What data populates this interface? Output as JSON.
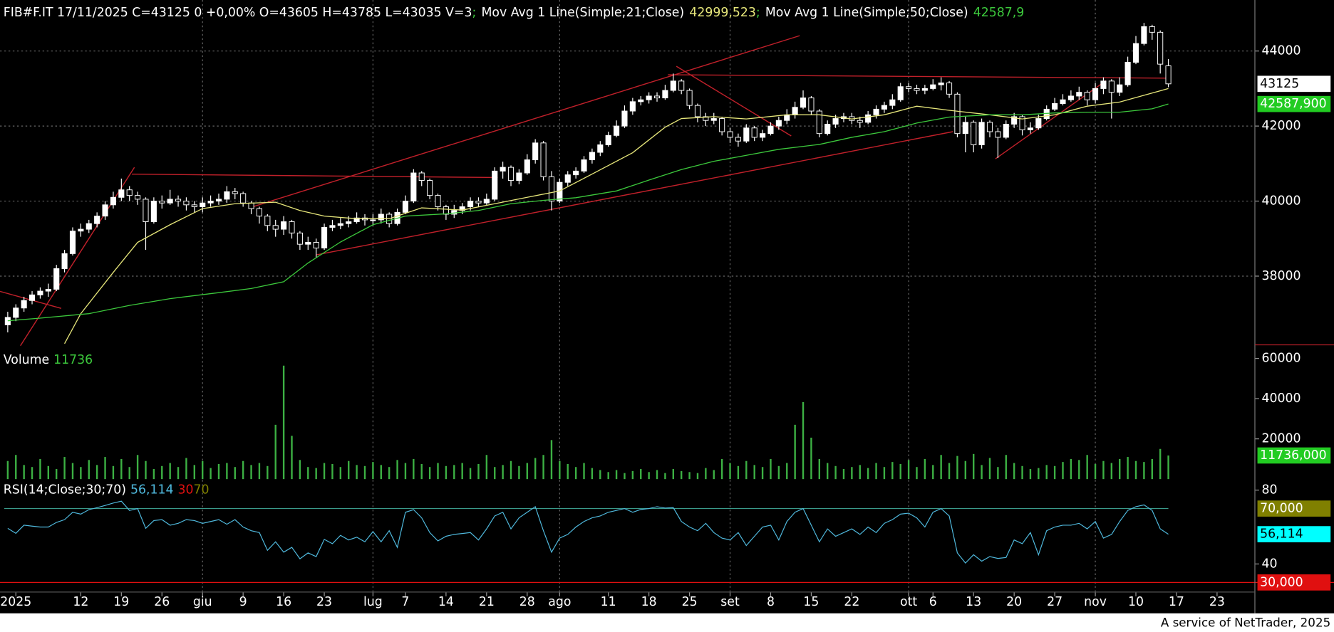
{
  "header": {
    "title": "FIB#F.IT 17/11/2025 C=43125 0 +0,00% O=43605 H=43785 L=43035 V=3",
    "separator": ";"
  },
  "footer": "A service of NetTrader, 2025",
  "chart_data": [
    {
      "type": "candlestick",
      "open": [
        36700,
        36900,
        37150,
        37350,
        37500,
        37600,
        37650,
        38200,
        38600,
        39200,
        39250,
        39400,
        39600,
        39900,
        40100,
        40300,
        40150,
        40050,
        39450,
        40000,
        39950,
        40050,
        40000,
        39900,
        39850,
        39950,
        40000,
        40050,
        40250,
        40200,
        39950,
        39800,
        39600,
        39350,
        39250,
        39450,
        39150,
        38850,
        38900,
        38750,
        39300,
        39350,
        39400,
        39450,
        39550,
        39500,
        39500,
        39650,
        39400,
        39700,
        40000,
        40750,
        40550,
        40150,
        39850,
        39650,
        39750,
        39850,
        40000,
        39950,
        40050,
        40800,
        40900,
        40550,
        40750,
        41100,
        41550,
        40650,
        40000,
        40500,
        40700,
        40800,
        41100,
        41300,
        41500,
        41750,
        42000,
        42400,
        42650,
        42700,
        42800,
        42750,
        42950,
        43200,
        42950,
        42550,
        42250,
        42150,
        42200,
        41850,
        41700,
        41600,
        41950,
        41700,
        41800,
        42000,
        42150,
        42300,
        42500,
        42750,
        42400,
        41800,
        42050,
        42200,
        42250,
        42150,
        42100,
        42300,
        42450,
        42550,
        42700,
        43050,
        43000,
        42950,
        43000,
        43100,
        43150,
        42850,
        41800,
        42100,
        41500,
        42100,
        41850,
        41700,
        42050,
        42250,
        41900,
        41950,
        42200,
        42450,
        42600,
        42700,
        42800,
        42900,
        42700,
        43000,
        43200,
        42900,
        43100,
        43700,
        44200,
        44650,
        44500,
        43605
      ],
      "high": [
        37050,
        37250,
        37450,
        37600,
        37700,
        37800,
        38300,
        38700,
        39300,
        39400,
        39500,
        39700,
        40000,
        40250,
        40600,
        40400,
        40250,
        40100,
        40100,
        40150,
        40300,
        40150,
        40100,
        40000,
        40100,
        40150,
        40200,
        40400,
        40350,
        40250,
        40000,
        39850,
        39650,
        39500,
        39600,
        39500,
        39200,
        39050,
        39000,
        39400,
        39500,
        39550,
        39600,
        39700,
        39650,
        39650,
        39800,
        39700,
        39800,
        40150,
        40850,
        40800,
        40600,
        40200,
        39900,
        39900,
        39950,
        40100,
        40100,
        40200,
        40900,
        41050,
        40950,
        40850,
        41250,
        41650,
        41600,
        40800,
        40600,
        40800,
        40900,
        41200,
        41400,
        41600,
        41850,
        42150,
        42550,
        42750,
        42800,
        42900,
        42900,
        43100,
        43400,
        43250,
        43000,
        42600,
        42350,
        42350,
        42250,
        41950,
        41800,
        42050,
        42000,
        41900,
        42100,
        42250,
        42450,
        42650,
        42950,
        42800,
        42450,
        42150,
        42300,
        42350,
        42350,
        42250,
        42400,
        42550,
        42650,
        42850,
        43150,
        43150,
        43100,
        43100,
        43250,
        43300,
        43200,
        42900,
        42250,
        42150,
        42200,
        42150,
        41950,
        42150,
        42350,
        42300,
        42100,
        42300,
        42550,
        42750,
        42850,
        42950,
        43050,
        42950,
        43150,
        43300,
        43250,
        43300,
        43850,
        44400,
        44750,
        44700,
        44550,
        43785
      ],
      "low": [
        36500,
        36800,
        37050,
        37250,
        37400,
        37450,
        37600,
        38100,
        38550,
        39050,
        39150,
        39300,
        39500,
        39800,
        40000,
        40000,
        39900,
        38700,
        39400,
        39800,
        39900,
        39850,
        39750,
        39700,
        39700,
        39850,
        39900,
        39950,
        40050,
        39850,
        39650,
        39400,
        39200,
        39050,
        39100,
        39000,
        38700,
        38700,
        38500,
        38700,
        39200,
        39250,
        39300,
        39400,
        39350,
        39350,
        39400,
        39300,
        39350,
        39650,
        39950,
        40400,
        40050,
        39750,
        39500,
        39550,
        39650,
        39750,
        39850,
        39900,
        40000,
        40600,
        40400,
        40450,
        40700,
        41000,
        40550,
        39750,
        39950,
        40400,
        40600,
        40750,
        41000,
        41200,
        41450,
        41700,
        41950,
        42300,
        42550,
        42600,
        42650,
        42700,
        42900,
        42850,
        42450,
        42100,
        42000,
        42050,
        41750,
        41550,
        41450,
        41550,
        41600,
        41600,
        41750,
        41900,
        42050,
        42200,
        42450,
        42300,
        41700,
        41750,
        41950,
        42100,
        42050,
        41950,
        42050,
        42200,
        42350,
        42450,
        42650,
        42900,
        42850,
        42850,
        42950,
        42950,
        42750,
        41700,
        41300,
        41300,
        41400,
        41700,
        41150,
        41650,
        41950,
        41750,
        41800,
        41900,
        42150,
        42400,
        42550,
        42650,
        42700,
        42550,
        42600,
        42850,
        42200,
        42800,
        43050,
        43650,
        44150,
        44300,
        43400,
        43035
      ],
      "close": [
        36900,
        37150,
        37350,
        37500,
        37600,
        37650,
        38200,
        38600,
        39200,
        39250,
        39400,
        39600,
        39900,
        40100,
        40300,
        40150,
        40050,
        39450,
        40000,
        39950,
        40050,
        40000,
        39900,
        39850,
        39950,
        40000,
        40050,
        40250,
        40200,
        39950,
        39800,
        39600,
        39350,
        39250,
        39450,
        39150,
        38850,
        38900,
        38750,
        39300,
        39350,
        39400,
        39450,
        39550,
        39500,
        39500,
        39650,
        39400,
        39700,
        40000,
        40750,
        40550,
        40150,
        39850,
        39650,
        39750,
        39850,
        40000,
        39950,
        40050,
        40800,
        40900,
        40550,
        40750,
        41100,
        41550,
        40650,
        40000,
        40500,
        40700,
        40800,
        41100,
        41300,
        41500,
        41750,
        42000,
        42400,
        42650,
        42700,
        42800,
        42750,
        42950,
        43200,
        42950,
        42550,
        42250,
        42150,
        42200,
        41850,
        41700,
        41600,
        41950,
        41700,
        41800,
        42000,
        42150,
        42300,
        42500,
        42750,
        42400,
        41800,
        42050,
        42200,
        42250,
        42150,
        42100,
        42300,
        42450,
        42550,
        42700,
        43050,
        43000,
        42950,
        43000,
        43100,
        43150,
        42850,
        41800,
        42100,
        41500,
        42100,
        41850,
        41700,
        42050,
        42250,
        41900,
        41950,
        42200,
        42450,
        42600,
        42700,
        42800,
        42900,
        42700,
        43000,
        43200,
        42900,
        43100,
        43700,
        44200,
        44650,
        44500,
        43650,
        43125
      ],
      "up_color": "#ffffff",
      "down_color": "#000000",
      "wick_color": "#ffffff",
      "lines": [
        {
          "name": "Mov Avg 1 Line(Simple;21;Close)",
          "color": "#e6e67a",
          "legend_value": "42999,523",
          "x": [
            7,
            9,
            13,
            16,
            20,
            24,
            28,
            33,
            36,
            39,
            43,
            47,
            51,
            56,
            60,
            64,
            68,
            72,
            77,
            81,
            83,
            87,
            91,
            96,
            100,
            104,
            108,
            112,
            116,
            121,
            125,
            129,
            133,
            137,
            140,
            143
          ],
          "values": [
            36200,
            37000,
            38100,
            38900,
            39370,
            39800,
            39930,
            39970,
            39750,
            39600,
            39530,
            39530,
            39820,
            39760,
            39930,
            40100,
            40270,
            40720,
            41290,
            41970,
            42200,
            42250,
            42190,
            42300,
            42300,
            42190,
            42300,
            42530,
            42420,
            42300,
            42190,
            42300,
            42530,
            42640,
            42820,
            42999.523
          ]
        },
        {
          "name": "Mov Avg 1 Line(Simple;50;Close)",
          "color": "#3cc83c",
          "legend_value": "42587,9",
          "axis_label": "42587,900",
          "label_bg": "#22cc22",
          "x": [
            0,
            4,
            10,
            15,
            20,
            26,
            30,
            34,
            37,
            41,
            45,
            49,
            54,
            58,
            62,
            66,
            70,
            75,
            79,
            83,
            87,
            91,
            95,
            100,
            104,
            108,
            112,
            116,
            121,
            125,
            129,
            133,
            137,
            141,
            143
          ],
          "values": [
            36810,
            36880,
            37000,
            37220,
            37400,
            37560,
            37670,
            37850,
            38350,
            38910,
            39370,
            39600,
            39660,
            39750,
            39930,
            40020,
            40090,
            40270,
            40560,
            40840,
            41060,
            41220,
            41380,
            41510,
            41700,
            41850,
            42080,
            42240,
            42300,
            42300,
            42350,
            42370,
            42370,
            42460,
            42587.9
          ]
        }
      ],
      "ylim": [
        36190,
        45360
      ],
      "yticks": [
        38000,
        40000,
        42000,
        44000
      ],
      "grid": true
    },
    {
      "type": "bar",
      "title": "Volume",
      "color": "#3cb043",
      "axis_label": "11736,000",
      "label_bg": "#22cc22",
      "values": [
        9000,
        12000,
        7000,
        6000,
        10000,
        6500,
        5000,
        11000,
        8000,
        6000,
        9500,
        7000,
        11000,
        6500,
        10000,
        6000,
        12000,
        9000,
        5000,
        6500,
        8000,
        6000,
        10500,
        7000,
        9000,
        5500,
        7500,
        8000,
        6000,
        9000,
        7000,
        8000,
        6500,
        27000,
        56400,
        21500,
        9500,
        6000,
        5500,
        8000,
        7500,
        6000,
        9000,
        7000,
        6500,
        8500,
        7000,
        6000,
        9500,
        8000,
        10000,
        7500,
        6000,
        8000,
        6500,
        7000,
        8000,
        5500,
        7500,
        12000,
        6000,
        7000,
        9000,
        6500,
        8000,
        10500,
        12000,
        19400,
        9000,
        7500,
        6000,
        8000,
        5500,
        4500,
        3500,
        4500,
        3000,
        4000,
        5000,
        3500,
        4500,
        3000,
        5000,
        4000,
        3500,
        3000,
        5500,
        4500,
        10000,
        8000,
        6500,
        9000,
        7000,
        6000,
        10000,
        6500,
        8000,
        27000,
        38300,
        20600,
        10000,
        8000,
        6500,
        5000,
        6000,
        7000,
        5500,
        8000,
        6000,
        8500,
        7500,
        9500,
        6000,
        10000,
        7000,
        12000,
        8000,
        11500,
        9000,
        12500,
        7000,
        10500,
        6000,
        12000,
        8000,
        6500,
        5000,
        5500,
        7000,
        6500,
        8500,
        10000,
        9500,
        12000,
        7500,
        9000,
        8000,
        10000,
        11000,
        9000,
        8500,
        10000,
        15000,
        11736
      ],
      "ylim": [
        0,
        66300
      ],
      "yticks": [
        20000,
        40000,
        60000
      ]
    },
    {
      "type": "line",
      "title": "RSI(14;Close;30;70)",
      "color": "#4fb8dc",
      "legend_value": "56,114",
      "axis_label": "56,114",
      "label_bg": "#00ffff",
      "values": [
        59.3,
        56.6,
        61,
        60.5,
        60,
        60,
        62.5,
        64,
        68,
        67,
        69.4,
        70.5,
        71.7,
        73,
        74,
        69,
        70,
        59.3,
        63.5,
        64,
        61,
        62,
        64,
        63.5,
        62,
        63,
        64,
        61.5,
        64,
        60,
        58,
        57,
        47.4,
        52,
        46.4,
        49,
        42.8,
        46,
        44,
        53.3,
        51,
        55.5,
        53,
        54.5,
        52,
        57.5,
        52,
        58,
        49,
        68,
        69.4,
        65,
        57,
        52.5,
        55,
        56,
        56.5,
        57,
        53,
        59,
        66,
        68,
        59,
        65,
        68,
        71,
        58,
        46.4,
        54,
        56,
        60,
        63,
        65,
        66,
        68,
        69,
        70,
        68,
        69.5,
        70,
        71,
        70.3,
        70.5,
        63,
        60,
        58,
        62,
        57,
        54,
        53,
        57,
        50,
        55,
        60,
        61,
        53,
        63,
        68,
        70,
        61,
        52,
        59,
        55,
        57,
        59,
        56,
        60,
        57,
        62,
        64,
        67,
        67.5,
        65,
        60,
        68,
        70,
        66,
        46,
        40.5,
        45,
        41.5,
        44,
        43,
        43.5,
        53,
        51,
        57,
        45,
        58,
        60,
        61,
        61,
        62,
        59,
        63,
        54,
        56,
        63,
        69,
        71,
        72,
        69,
        59,
        56.114
      ],
      "levels": [
        {
          "value": 30,
          "color": "#e01010",
          "axis_label": "30,000"
        },
        {
          "value": 70,
          "color": "#808000",
          "line_color": "#3a9a8a",
          "axis_label": "70,000"
        }
      ],
      "ylim": [
        25.7,
        85.5
      ],
      "yticks": [
        40,
        80
      ],
      "xlim": [
        -0.954,
        153.66
      ],
      "xticks": [
        {
          "value": 1,
          "label": "2025"
        },
        {
          "value": 9,
          "label": "12"
        },
        {
          "value": 14,
          "label": "19"
        },
        {
          "value": 19,
          "label": "26"
        },
        {
          "value": 24,
          "label": "giu"
        },
        {
          "value": 29,
          "label": "9"
        },
        {
          "value": 34,
          "label": "16"
        },
        {
          "value": 39,
          "label": "23"
        },
        {
          "value": 45,
          "label": "lug"
        },
        {
          "value": 49,
          "label": "7"
        },
        {
          "value": 54,
          "label": "14"
        },
        {
          "value": 59,
          "label": "21"
        },
        {
          "value": 64,
          "label": "28"
        },
        {
          "value": 68,
          "label": "ago"
        },
        {
          "value": 74,
          "label": "11"
        },
        {
          "value": 79,
          "label": "18"
        },
        {
          "value": 84,
          "label": "25"
        },
        {
          "value": 89,
          "label": "set"
        },
        {
          "value": 94,
          "label": "8"
        },
        {
          "value": 99,
          "label": "15"
        },
        {
          "value": 104,
          "label": "22"
        },
        {
          "value": 111,
          "label": "ott"
        },
        {
          "value": 114,
          "label": "6"
        },
        {
          "value": 119,
          "label": "13"
        },
        {
          "value": 124,
          "label": "20"
        },
        {
          "value": 129,
          "label": "27"
        },
        {
          "value": 134,
          "label": "nov"
        },
        {
          "value": 139,
          "label": "10"
        },
        {
          "value": 144,
          "label": "17"
        },
        {
          "value": 149,
          "label": "23"
        }
      ]
    }
  ]
}
